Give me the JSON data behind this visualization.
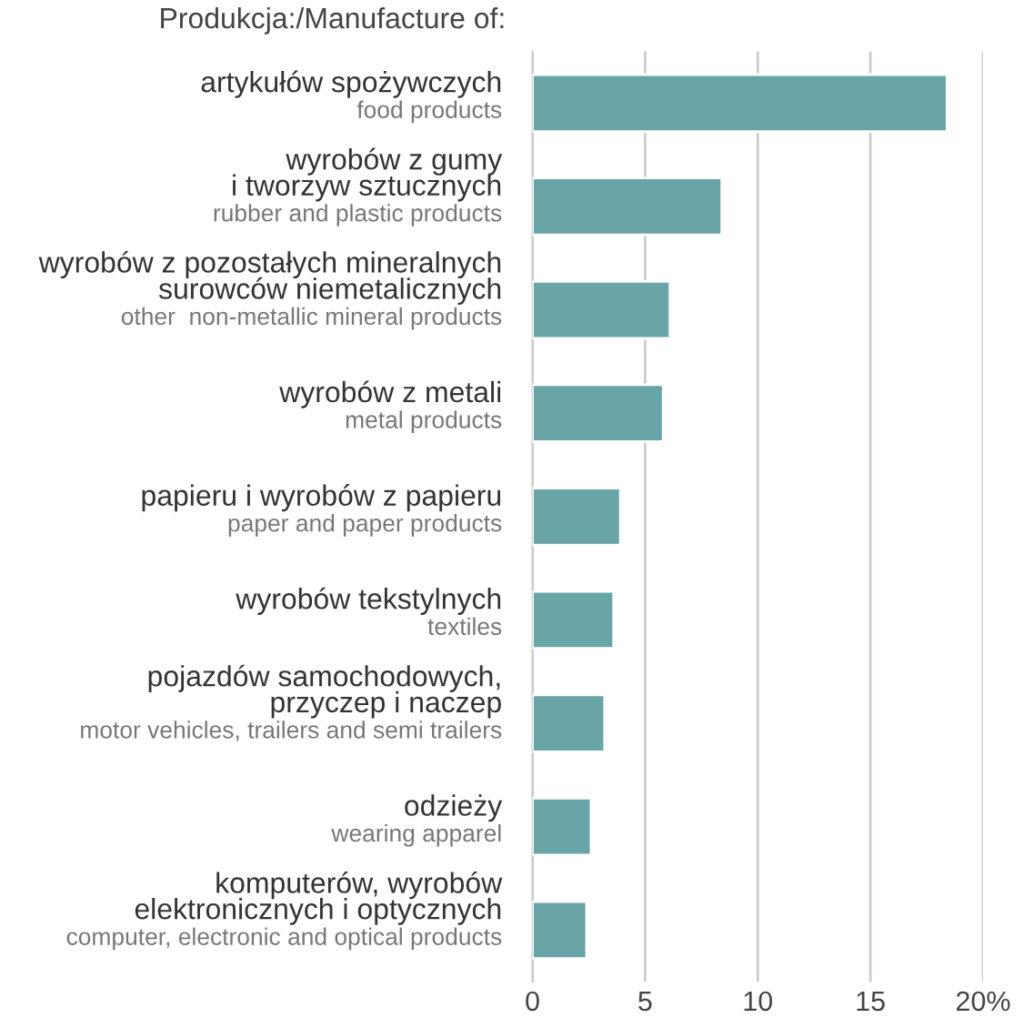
{
  "chart_data": {
    "type": "bar",
    "orientation": "horizontal",
    "title": "Produkcja:/Manufacture of:",
    "categories": [
      "artykułów spożywczych\nfood products",
      "wyrobów z gumy\ni tworzyw sztucznych\nrubber and plastic products",
      "wyrobów z pozostałych mineralnych\nsurowców niemetalicznych\nother  non-metallic mineral products",
      "wyrobów z metali\nmetal products",
      "papieru i wyrobów z papieru\npaper and paper products",
      "wyrobów tekstylnych\ntextiles",
      "pojazdów samochodowych,\nprzyczep i naczep\nmotor vehicles, trailers and semi trailers",
      "odzieży\nwearing apparel",
      "komputerów, wyrobów\nelektronicznych i optycznych\ncomputer, electronic and optical products"
    ],
    "values": [
      18.4,
      8.4,
      6.1,
      5.8,
      3.9,
      3.6,
      3.2,
      2.6,
      2.4
    ],
    "color": "#69a5a6",
    "xlim": [
      0,
      20
    ],
    "xticks": [
      0,
      5,
      10,
      15,
      {
        "value": 20,
        "label": "20%"
      }
    ],
    "grid": "x"
  }
}
